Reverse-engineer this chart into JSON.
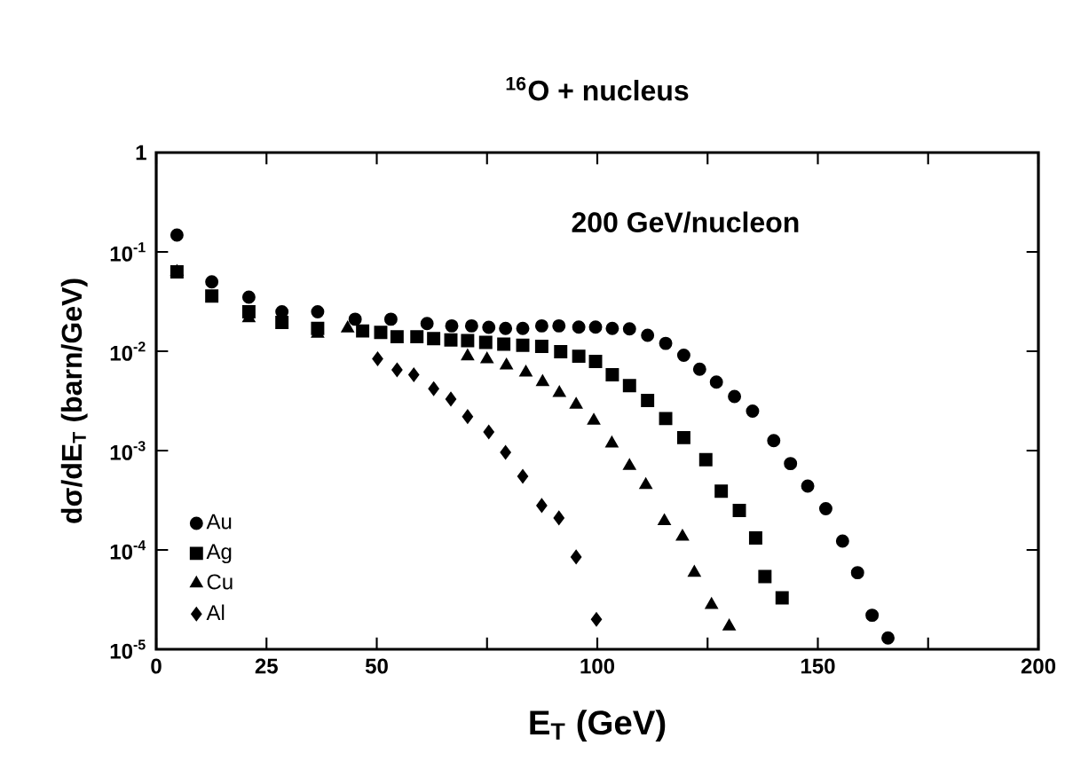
{
  "chart_data": {
    "type": "scatter",
    "title": "$^{16}$O + nucleus",
    "xlabel": "E$_{T}$ (GeV)",
    "ylabel": "dσ/dE$_{T}$ (barn/GeV)",
    "annotations": [
      "200 GeV/nucleon"
    ],
    "log": "y",
    "legend": "bottom left",
    "grid": false,
    "xlim": [
      0,
      200
    ],
    "ylim": [
      1e-05,
      1
    ],
    "xticks": [
      0,
      25,
      50,
      {
        "value": 75,
        "label": null
      },
      100,
      {
        "value": 125,
        "label": null
      },
      150,
      {
        "value": 175,
        "label": null
      },
      200
    ],
    "yticks": [
      {
        "value": 1e-05,
        "label": "10$^{-5}$"
      },
      {
        "value": 0.0001,
        "label": "10$^{-4}$"
      },
      {
        "value": 0.001,
        "label": "10$^{-3}$"
      },
      {
        "value": 0.01,
        "label": "10$^{-2}$"
      },
      {
        "value": 0.1,
        "label": "10$^{-1}$"
      },
      1
    ],
    "series": [
      {
        "name": "Au",
        "color": "#000000",
        "marker": "circle",
        "x": [
          4.7,
          12.6,
          21.0,
          28.5,
          36.6,
          45.1,
          53.2,
          61.4,
          67.0,
          71.5,
          75.4,
          79.2,
          83.1,
          87.4,
          91.3,
          95.8,
          99.6,
          103.4,
          107.3,
          111.4,
          115.5,
          119.6,
          123.2,
          127.0,
          131.1,
          135.2,
          140.0,
          143.8,
          147.7,
          151.8,
          155.6,
          159.0,
          162.3,
          165.9
        ],
        "values": [
          0.148,
          0.05,
          0.035,
          0.025,
          0.025,
          0.021,
          0.021,
          0.019,
          0.018,
          0.018,
          0.0174,
          0.017,
          0.017,
          0.018,
          0.018,
          0.0175,
          0.0175,
          0.017,
          0.0168,
          0.0145,
          0.012,
          0.0091,
          0.0066,
          0.0049,
          0.0035,
          0.0025,
          0.00126,
          0.00074,
          0.00044,
          0.00026,
          0.000123,
          5.9e-05,
          2.2e-05,
          1.3e-05
        ]
      },
      {
        "name": "Ag",
        "color": "#000000",
        "marker": "square",
        "x": [
          4.7,
          12.6,
          21.0,
          28.5,
          36.6,
          46.8,
          50.9,
          54.6,
          59.1,
          62.9,
          66.8,
          70.6,
          74.7,
          78.8,
          83.1,
          87.4,
          91.7,
          95.8,
          99.6,
          103.4,
          107.3,
          111.4,
          115.5,
          119.6,
          124.6,
          128.1,
          132.2,
          135.9,
          138.0,
          141.9
        ],
        "values": [
          0.063,
          0.036,
          0.025,
          0.0195,
          0.017,
          0.016,
          0.0155,
          0.014,
          0.014,
          0.0134,
          0.013,
          0.0128,
          0.0123,
          0.0118,
          0.0115,
          0.0112,
          0.0099,
          0.0089,
          0.0079,
          0.0058,
          0.0045,
          0.0032,
          0.0021,
          0.00135,
          0.00081,
          0.00039,
          0.00025,
          0.000132,
          5.4e-05,
          3.3e-05
        ]
      },
      {
        "name": "Cu",
        "color": "#000000",
        "marker": "triangle",
        "x": [
          4.7,
          21.0,
          36.6,
          43.4,
          70.6,
          75.0,
          79.4,
          83.8,
          87.6,
          91.4,
          95.2,
          99.2,
          103.3,
          107.3,
          111.0,
          115.2,
          119.3,
          122.0,
          125.9,
          129.9
        ],
        "values": [
          0.063,
          0.0215,
          0.015,
          0.017,
          0.0089,
          0.0083,
          0.0072,
          0.0061,
          0.0049,
          0.0038,
          0.0029,
          0.002,
          0.00118,
          0.0007,
          0.00045,
          0.000195,
          0.000136,
          5.9e-05,
          2.8e-05,
          1.7e-05
        ]
      },
      {
        "name": "Al",
        "color": "#000000",
        "marker": "diamond",
        "x": [
          50.2,
          54.6,
          58.4,
          62.9,
          66.8,
          70.6,
          75.4,
          79.2,
          83.1,
          87.4,
          91.3,
          95.2,
          99.8
        ],
        "values": [
          0.0084,
          0.0065,
          0.0058,
          0.0042,
          0.0033,
          0.0022,
          0.00154,
          0.00096,
          0.00055,
          0.00028,
          0.00021,
          8.5e-05,
          2e-05
        ]
      }
    ]
  }
}
